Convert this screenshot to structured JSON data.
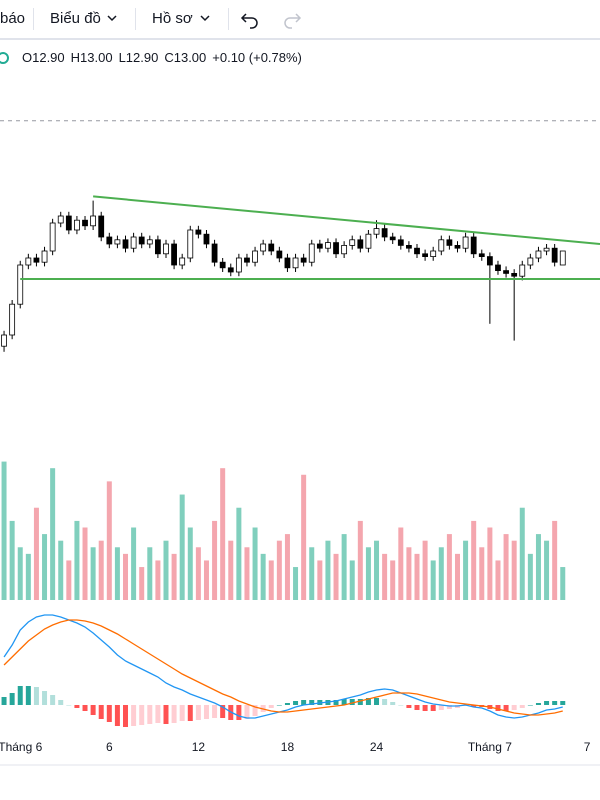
{
  "toolbar": {
    "items": [
      "báo",
      "Biểu đồ",
      "Hồ sơ"
    ]
  },
  "legend": [
    "O12.90",
    "H13.00",
    "L12.90",
    "C13.00",
    "+0.10 (+0.78%)"
  ],
  "chart_data": [
    {
      "type": "candlestick",
      "open": [
        12.32,
        12.4,
        12.62,
        12.9,
        12.95,
        12.92,
        13.0,
        13.2,
        13.25,
        13.15,
        13.22,
        13.18,
        13.25,
        13.1,
        13.05,
        13.08,
        13.02,
        13.1,
        13.05,
        13.08,
        12.98,
        13.05,
        12.9,
        12.95,
        13.15,
        13.12,
        13.05,
        12.92,
        12.88,
        12.85,
        12.95,
        12.92,
        13.0,
        13.05,
        13.0,
        12.95,
        12.88,
        12.95,
        12.92,
        13.05,
        13.02,
        13.06,
        12.98,
        13.04,
        13.08,
        13.02,
        13.12,
        13.16,
        13.1,
        13.08,
        13.04,
        13.02,
        12.98,
        12.96,
        13.0,
        13.08,
        13.04,
        13.02,
        13.1,
        12.98,
        12.96,
        12.9,
        12.86,
        12.84,
        12.82,
        12.9,
        12.95,
        13.0,
        13.02,
        12.9
      ],
      "high": [
        12.43,
        12.65,
        12.93,
        12.98,
        12.98,
        13.03,
        13.23,
        13.28,
        13.28,
        13.25,
        13.25,
        13.36,
        13.28,
        13.13,
        13.11,
        13.11,
        13.13,
        13.13,
        13.11,
        13.11,
        13.08,
        13.08,
        12.98,
        13.18,
        13.18,
        13.15,
        13.08,
        12.95,
        12.91,
        12.98,
        12.98,
        13.03,
        13.08,
        13.08,
        13.03,
        12.98,
        12.98,
        12.98,
        13.08,
        13.08,
        13.09,
        13.09,
        13.07,
        13.11,
        13.11,
        13.15,
        13.22,
        13.19,
        13.13,
        13.11,
        13.07,
        13.05,
        13.01,
        13.03,
        13.11,
        13.11,
        13.07,
        13.13,
        13.13,
        13.01,
        12.99,
        12.93,
        12.89,
        12.87,
        12.93,
        12.98,
        13.03,
        13.05,
        13.05,
        13.0
      ],
      "low": [
        12.28,
        12.37,
        12.59,
        12.87,
        12.89,
        12.89,
        12.97,
        13.17,
        13.12,
        13.12,
        13.15,
        13.15,
        13.07,
        13.02,
        13.02,
        12.99,
        12.99,
        13.02,
        13.02,
        12.95,
        12.95,
        12.87,
        12.87,
        12.92,
        13.09,
        13.02,
        12.89,
        12.85,
        12.82,
        12.82,
        12.89,
        12.89,
        12.97,
        12.97,
        12.92,
        12.85,
        12.85,
        12.89,
        12.89,
        12.99,
        12.99,
        12.95,
        12.95,
        13.01,
        12.99,
        12.99,
        13.09,
        13.07,
        13.05,
        13.01,
        12.99,
        12.95,
        12.93,
        12.93,
        12.97,
        13.01,
        12.99,
        12.99,
        12.95,
        12.93,
        12.48,
        12.83,
        12.81,
        12.36,
        12.79,
        12.87,
        12.92,
        12.97,
        12.89,
        12.9
      ],
      "close": [
        12.4,
        12.62,
        12.9,
        12.95,
        12.92,
        13.0,
        13.2,
        13.25,
        13.15,
        13.22,
        13.18,
        13.25,
        13.1,
        13.05,
        13.08,
        13.02,
        13.1,
        13.05,
        13.08,
        12.98,
        13.05,
        12.9,
        12.95,
        13.15,
        13.12,
        13.05,
        12.92,
        12.88,
        12.85,
        12.95,
        12.92,
        13.0,
        13.05,
        13.0,
        12.95,
        12.88,
        12.95,
        12.92,
        13.05,
        13.02,
        13.06,
        12.98,
        13.04,
        13.08,
        13.02,
        13.12,
        13.16,
        13.1,
        13.08,
        13.04,
        13.02,
        12.98,
        12.96,
        13.0,
        13.08,
        13.04,
        13.02,
        13.1,
        12.98,
        12.96,
        12.9,
        12.86,
        12.84,
        12.82,
        12.9,
        12.95,
        13.0,
        13.02,
        12.92,
        13.0
      ],
      "ylim": [
        11.65,
        14.45
      ],
      "up_color": "#ffffff",
      "down_color": "#000000",
      "outline_color": "#000000",
      "reference_line": 13.93,
      "reference_color": "#9598a1",
      "trendlines": [
        {
          "x": [
            11,
            73.6
          ],
          "y": [
            13.39,
            13.05
          ]
        },
        {
          "x": [
            2,
            73.6
          ],
          "y": [
            12.8,
            12.8
          ]
        }
      ],
      "trendline_color": "#4caf50"
    },
    {
      "type": "volume",
      "values": [
        105,
        60,
        40,
        35,
        70,
        50,
        100,
        45,
        30,
        60,
        55,
        40,
        45,
        90,
        40,
        35,
        55,
        25,
        40,
        30,
        45,
        35,
        80,
        55,
        40,
        30,
        60,
        100,
        45,
        70,
        40,
        55,
        35,
        30,
        45,
        50,
        25,
        95,
        40,
        30,
        45,
        35,
        50,
        30,
        60,
        40,
        45,
        35,
        30,
        55,
        40,
        35,
        45,
        30,
        40,
        50,
        35,
        45,
        60,
        40,
        55,
        30,
        50,
        45,
        70,
        35,
        50,
        45,
        60,
        25
      ],
      "ylim": [
        0,
        110
      ],
      "up_color": "#80cfbd",
      "down_color": "#f4a6ae"
    },
    {
      "type": "macd",
      "series": [
        {
          "name": "MACD",
          "color": "#2196f3",
          "values": [
            0.048,
            0.06,
            0.075,
            0.083,
            0.088,
            0.09,
            0.09,
            0.088,
            0.085,
            0.082,
            0.078,
            0.072,
            0.065,
            0.058,
            0.05,
            0.044,
            0.04,
            0.036,
            0.032,
            0.028,
            0.022,
            0.018,
            0.015,
            0.011,
            0.008,
            0.005,
            0.002,
            -0.002,
            -0.007,
            -0.011,
            -0.013,
            -0.013,
            -0.011,
            -0.009,
            -0.007,
            -0.005,
            -0.002,
            0,
            0.001,
            0.002,
            0.003,
            0.004,
            0.006,
            0.008,
            0.01,
            0.013,
            0.015,
            0.016,
            0.015,
            0.012,
            0.009,
            0.006,
            0.003,
            0.001,
            0,
            -0.001,
            -0.001,
            0,
            -0.002,
            -0.003,
            -0.006,
            -0.01,
            -0.012,
            -0.013,
            -0.012,
            -0.01,
            -0.008,
            -0.005,
            -0.004,
            -0.002
          ]
        },
        {
          "name": "Signal",
          "color": "#ff6d00",
          "values": [
            0.04,
            0.048,
            0.056,
            0.064,
            0.07,
            0.076,
            0.08,
            0.083,
            0.085,
            0.085,
            0.084,
            0.082,
            0.079,
            0.075,
            0.071,
            0.066,
            0.061,
            0.056,
            0.051,
            0.046,
            0.041,
            0.036,
            0.031,
            0.027,
            0.023,
            0.019,
            0.015,
            0.011,
            0.008,
            0.004,
            0.001,
            -0.002,
            -0.004,
            -0.006,
            -0.007,
            -0.007,
            -0.006,
            -0.005,
            -0.004,
            -0.003,
            -0.002,
            -0.001,
            0,
            0.002,
            0.004,
            0.006,
            0.008,
            0.01,
            0.012,
            0.012,
            0.012,
            0.011,
            0.009,
            0.007,
            0.005,
            0.003,
            0.002,
            0.001,
            0,
            -0.001,
            -0.002,
            -0.004,
            -0.006,
            -0.008,
            -0.009,
            -0.01,
            -0.01,
            -0.009,
            -0.008,
            -0.006
          ]
        }
      ],
      "histogram": [
        0.008,
        0.012,
        0.019,
        0.019,
        0.018,
        0.014,
        0.01,
        0.005,
        0,
        -0.003,
        -0.006,
        -0.01,
        -0.014,
        -0.017,
        -0.021,
        -0.022,
        -0.021,
        -0.02,
        -0.019,
        -0.018,
        -0.019,
        -0.018,
        -0.016,
        -0.016,
        -0.015,
        -0.014,
        -0.013,
        -0.013,
        -0.015,
        -0.015,
        -0.014,
        -0.011,
        -0.007,
        -0.003,
        0,
        0.002,
        0.004,
        0.005,
        0.005,
        0.005,
        0.005,
        0.005,
        0.006,
        0.006,
        0.006,
        0.007,
        0.007,
        0.006,
        0.003,
        0,
        -0.003,
        -0.005,
        -0.006,
        -0.006,
        -0.005,
        -0.004,
        -0.003,
        -0.001,
        -0.002,
        -0.002,
        -0.004,
        -0.006,
        -0.006,
        -0.005,
        -0.003,
        0,
        0.002,
        0.004,
        0.004,
        0.004
      ],
      "histogram_colors": [
        "#26a69a",
        "#b2dfdb",
        "#ff5252",
        "#ffcdd2"
      ],
      "ylim": [
        -0.025,
        0.1
      ],
      "xlim": [
        -0.5,
        73.6
      ],
      "xticks": [
        {
          "value": 2,
          "label": "Tháng 6"
        },
        {
          "value": 13,
          "label": "6"
        },
        {
          "value": 24,
          "label": "12"
        },
        {
          "value": 35,
          "label": "18"
        },
        {
          "value": 46,
          "label": "24"
        },
        {
          "value": 60,
          "label": "Tháng 7"
        },
        {
          "value": 72,
          "label": "7"
        }
      ]
    }
  ]
}
